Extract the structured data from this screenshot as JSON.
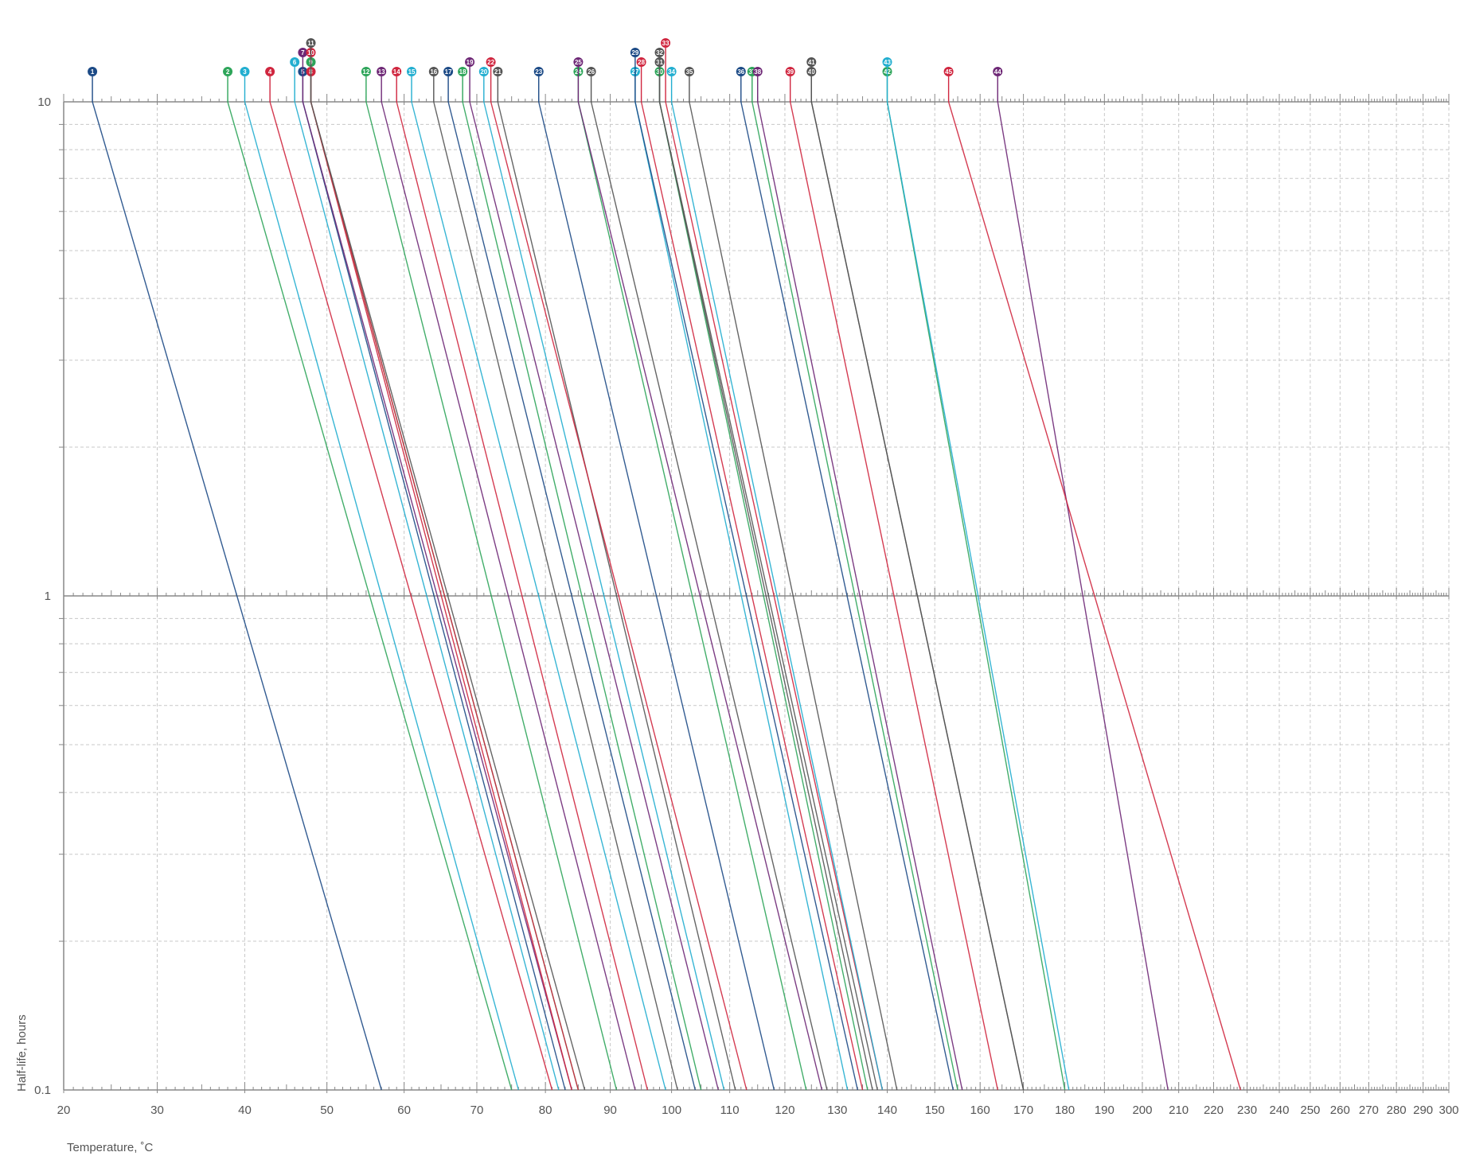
{
  "chart_data": {
    "type": "line",
    "title": "",
    "xlabel": "Temperature, ˚C",
    "ylabel": "Half-life, hours",
    "x_scale": "reciprocal (1/K)",
    "y_scale": "log",
    "xlim": [
      20,
      300
    ],
    "ylim": [
      0.1,
      10
    ],
    "x_ticks": [
      20,
      30,
      40,
      50,
      60,
      70,
      80,
      90,
      100,
      110,
      120,
      130,
      140,
      150,
      160,
      170,
      180,
      190,
      200,
      210,
      220,
      230,
      240,
      250,
      260,
      270,
      280,
      290,
      300
    ],
    "y_ticks": [
      0.1,
      1,
      10
    ],
    "grid": true,
    "colors": {
      "navy": "#1c4a86",
      "green": "#2ea55a",
      "cyan": "#22aed0",
      "red": "#d0263f",
      "purple": "#6e2876",
      "gray": "#555555",
      "axis": "#888888"
    },
    "series": [
      {
        "name": "1",
        "color_name": "navy",
        "x": [
          23,
          57
        ],
        "y": [
          10,
          0.1
        ]
      },
      {
        "name": "2",
        "color_name": "green",
        "x": [
          38,
          75
        ],
        "y": [
          10,
          0.1
        ]
      },
      {
        "name": "3",
        "color_name": "cyan",
        "x": [
          40,
          76
        ],
        "y": [
          10,
          0.1
        ]
      },
      {
        "name": "4",
        "color_name": "red",
        "x": [
          43,
          81
        ],
        "y": [
          10,
          0.1
        ]
      },
      {
        "name": "5",
        "color_name": "navy",
        "x": [
          47,
          83
        ],
        "y": [
          10,
          0.1
        ]
      },
      {
        "name": "6",
        "color_name": "cyan",
        "x": [
          46,
          82
        ],
        "y": [
          10,
          0.1
        ]
      },
      {
        "name": "7",
        "color_name": "purple",
        "x": [
          47,
          84
        ],
        "y": [
          10,
          0.1
        ]
      },
      {
        "name": "8",
        "color_name": "red",
        "x": [
          48,
          84
        ],
        "y": [
          10,
          0.1
        ]
      },
      {
        "name": "9",
        "color_name": "green",
        "x": [
          48,
          85
        ],
        "y": [
          10,
          0.1
        ]
      },
      {
        "name": "10",
        "color_name": "red",
        "x": [
          48,
          85
        ],
        "y": [
          10,
          0.1
        ]
      },
      {
        "name": "11",
        "color_name": "gray",
        "x": [
          48,
          86
        ],
        "y": [
          10,
          0.1
        ]
      },
      {
        "name": "12",
        "color_name": "green",
        "x": [
          55,
          91
        ],
        "y": [
          10,
          0.1
        ]
      },
      {
        "name": "13",
        "color_name": "purple",
        "x": [
          57,
          94
        ],
        "y": [
          10,
          0.1
        ]
      },
      {
        "name": "14",
        "color_name": "red",
        "x": [
          59,
          96
        ],
        "y": [
          10,
          0.1
        ]
      },
      {
        "name": "15",
        "color_name": "cyan",
        "x": [
          61,
          99
        ],
        "y": [
          10,
          0.1
        ]
      },
      {
        "name": "16",
        "color_name": "gray",
        "x": [
          64,
          101
        ],
        "y": [
          10,
          0.1
        ]
      },
      {
        "name": "17",
        "color_name": "navy",
        "x": [
          66,
          104
        ],
        "y": [
          10,
          0.1
        ]
      },
      {
        "name": "18",
        "color_name": "green",
        "x": [
          68,
          105
        ],
        "y": [
          10,
          0.1
        ]
      },
      {
        "name": "19",
        "color_name": "purple",
        "x": [
          69,
          108
        ],
        "y": [
          10,
          0.1
        ]
      },
      {
        "name": "20",
        "color_name": "cyan",
        "x": [
          71,
          109
        ],
        "y": [
          10,
          0.1
        ]
      },
      {
        "name": "21",
        "color_name": "gray",
        "x": [
          73,
          111
        ],
        "y": [
          10,
          0.1
        ]
      },
      {
        "name": "22",
        "color_name": "red",
        "x": [
          72,
          113
        ],
        "y": [
          10,
          0.1
        ]
      },
      {
        "name": "23",
        "color_name": "navy",
        "x": [
          79,
          118
        ],
        "y": [
          10,
          0.1
        ]
      },
      {
        "name": "24",
        "color_name": "green",
        "x": [
          85,
          124
        ],
        "y": [
          10,
          0.1
        ]
      },
      {
        "name": "25",
        "color_name": "purple",
        "x": [
          85,
          127
        ],
        "y": [
          10,
          0.1
        ]
      },
      {
        "name": "26",
        "color_name": "gray",
        "x": [
          87,
          128
        ],
        "y": [
          10,
          0.1
        ]
      },
      {
        "name": "27",
        "color_name": "cyan",
        "x": [
          94,
          132
        ],
        "y": [
          10,
          0.1
        ]
      },
      {
        "name": "28",
        "color_name": "red",
        "x": [
          95,
          135
        ],
        "y": [
          10,
          0.1
        ]
      },
      {
        "name": "29",
        "color_name": "navy",
        "x": [
          94,
          134
        ],
        "y": [
          10,
          0.1
        ]
      },
      {
        "name": "30",
        "color_name": "green",
        "x": [
          98,
          136
        ],
        "y": [
          10,
          0.1
        ]
      },
      {
        "name": "31",
        "color_name": "gray",
        "x": [
          98,
          137
        ],
        "y": [
          10,
          0.1
        ]
      },
      {
        "name": "32",
        "color_name": "gray",
        "x": [
          98,
          138
        ],
        "y": [
          10,
          0.1
        ]
      },
      {
        "name": "33",
        "color_name": "red",
        "x": [
          99,
          139
        ],
        "y": [
          10,
          0.1
        ]
      },
      {
        "name": "34",
        "color_name": "cyan",
        "x": [
          100,
          139
        ],
        "y": [
          10,
          0.1
        ]
      },
      {
        "name": "35",
        "color_name": "gray",
        "x": [
          103,
          142
        ],
        "y": [
          10,
          0.1
        ]
      },
      {
        "name": "36",
        "color_name": "navy",
        "x": [
          112,
          154
        ],
        "y": [
          10,
          0.1
        ]
      },
      {
        "name": "37",
        "color_name": "green",
        "x": [
          114,
          155
        ],
        "y": [
          10,
          0.1
        ]
      },
      {
        "name": "38",
        "color_name": "purple",
        "x": [
          115,
          156
        ],
        "y": [
          10,
          0.1
        ]
      },
      {
        "name": "39",
        "color_name": "red",
        "x": [
          121,
          164
        ],
        "y": [
          10,
          0.1
        ]
      },
      {
        "name": "40",
        "color_name": "gray",
        "x": [
          125,
          170
        ],
        "y": [
          10,
          0.1
        ]
      },
      {
        "name": "41",
        "color_name": "gray",
        "x": [
          125,
          170
        ],
        "y": [
          10,
          0.1
        ]
      },
      {
        "name": "42",
        "color_name": "green",
        "x": [
          140,
          180
        ],
        "y": [
          10,
          0.1
        ]
      },
      {
        "name": "43",
        "color_name": "cyan",
        "x": [
          140,
          181
        ],
        "y": [
          10,
          0.1
        ]
      },
      {
        "name": "44",
        "color_name": "purple",
        "x": [
          164,
          207
        ],
        "y": [
          10,
          0.1
        ]
      },
      {
        "name": "45",
        "color_name": "red",
        "x": [
          153,
          228
        ],
        "y": [
          10,
          0.1
        ]
      }
    ]
  }
}
